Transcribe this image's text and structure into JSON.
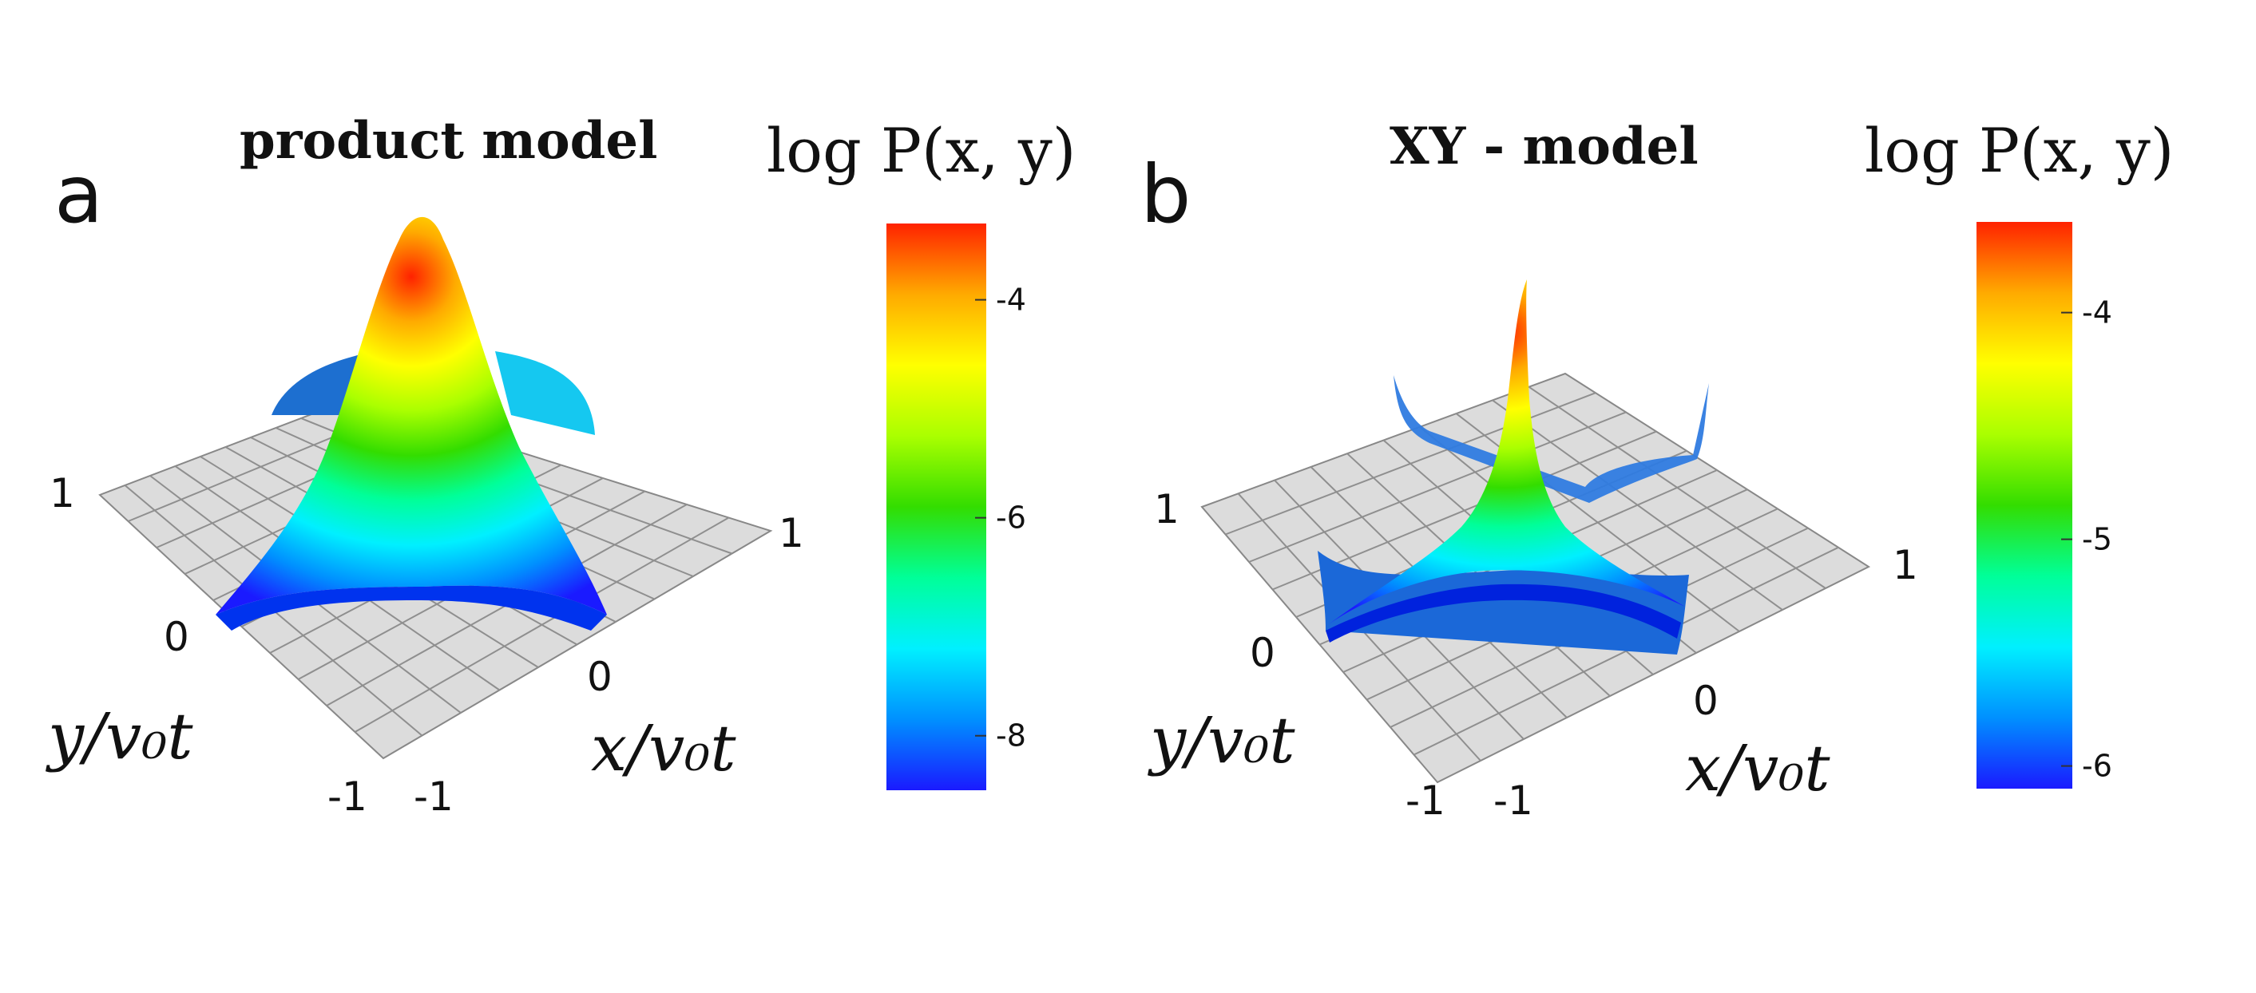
{
  "panels": [
    {
      "letter": "a",
      "title": "product model",
      "colorbar_title": "log P(x, y)",
      "x_axis_label": "x/v₀t",
      "y_axis_label": "y/v₀t",
      "x_ticks": [
        "-1",
        "0",
        "1"
      ],
      "y_ticks": [
        "-1",
        "0",
        "1"
      ]
    },
    {
      "letter": "b",
      "title": "XY - model",
      "colorbar_title": "log P(x, y)",
      "x_axis_label": "x/v₀t",
      "y_axis_label": "y/v₀t",
      "x_ticks": [
        "-1",
        "0",
        "1"
      ],
      "y_ticks": [
        "-1",
        "0",
        "1"
      ]
    }
  ],
  "colormap": [
    "#1a1aff",
    "#0090ff",
    "#00f0ff",
    "#00ff99",
    "#33dd00",
    "#aaff00",
    "#ffff00",
    "#ffaa00",
    "#ff2200"
  ],
  "chart_data": [
    {
      "type": "surface",
      "title": "product model",
      "xlabel": "x/v₀t",
      "ylabel": "y/v₀t",
      "zlabel": "log P(x, y)",
      "xlim": [
        -1,
        1
      ],
      "ylim": [
        -1,
        1
      ],
      "colorbar": {
        "range": [
          -8.5,
          -3.3
        ],
        "ticks": [
          -4,
          -6,
          -8
        ]
      },
      "surface": "star-shaped peak at origin (max ≈ -3.4), ridges along x = ±y/|y| edges, minima ≈ -8.5 at the diamond corners"
    },
    {
      "type": "surface",
      "title": "XY - model",
      "xlabel": "x/v₀t",
      "ylabel": "y/v₀t",
      "zlabel": "log P(x, y)",
      "xlim": [
        -1,
        1
      ],
      "ylim": [
        -1,
        1
      ],
      "colorbar": {
        "range": [
          -6.1,
          -3.6
        ],
        "ticks": [
          -4,
          -5,
          -6
        ]
      },
      "surface": "sharp peak at origin (max ≈ -3.7), noisy square boundary walls at |x| = 1 and |y| = 1"
    }
  ]
}
